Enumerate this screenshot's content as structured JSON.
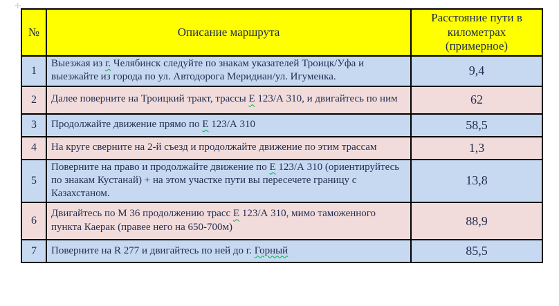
{
  "colors": {
    "page_bg": "#FFFFFF",
    "header_bg": "#FFFF00",
    "row_blue": "#C6D9F1",
    "row_pink": "#F2DCDB",
    "border": "#000000",
    "text": "#1F2C50",
    "spellcheck_underline": "#00B050",
    "move_handle": "#C9C9C9"
  },
  "icons": {
    "table_move_handle": "✛"
  },
  "table": {
    "header": {
      "col_number": "№",
      "col_description": "Описание маршрута",
      "col_distance": "Расстояние пути в километрах (примерное)"
    },
    "rows": [
      {
        "number": "1",
        "distance_km": "9,4",
        "description": [
          {
            "text": "Выезжая из "
          },
          {
            "text": "г.",
            "misspelled": true
          },
          {
            "text": " Челябинск следуйте по знакам указателей Троицк/Уфа и выезжайте из города по ул. Автодорога Меридиан/ул. Игуменка."
          }
        ]
      },
      {
        "number": "2",
        "distance_km": "62",
        "description": [
          {
            "text": "Далее поверните на Троицкий тракт, трассы "
          },
          {
            "text": "Е",
            "misspelled": true
          },
          {
            "text": " 123/А 310, и двигайтесь по ним"
          }
        ]
      },
      {
        "number": "3",
        "distance_km": "58,5",
        "description": [
          {
            "text": "Продолжайте движение прямо по "
          },
          {
            "text": "Е",
            "misspelled": true
          },
          {
            "text": " 123/А 310"
          }
        ]
      },
      {
        "number": "4",
        "distance_km": "1,3",
        "description": [
          {
            "text": "На круге сверните на 2-й съезд и продолжайте движение по этим трассам"
          }
        ]
      },
      {
        "number": "5",
        "distance_km": "13,8",
        "description": [
          {
            "text": "Поверните на право и продолжайте движение по "
          },
          {
            "text": "Е",
            "misspelled": true
          },
          {
            "text": " 123/А 310 (ориентируйтесь по знакам Кустанай) + на этом участке пути вы пересечете границу с Казахстаном."
          }
        ]
      },
      {
        "number": "6",
        "distance_km": "88,9",
        "description": [
          {
            "text": "Двигайтесь по  М 36 продолжению  трасс "
          },
          {
            "text": "Е",
            "misspelled": true
          },
          {
            "text": " 123/А 310, мимо таможенного пункта Каерак (правее него на 650-700м)"
          }
        ]
      },
      {
        "number": "7",
        "distance_km": "85,5",
        "description": [
          {
            "text": "Поверните на R 277  и двигайтесь по ней до г. "
          },
          {
            "text": "Горный",
            "misspelled": true
          }
        ]
      }
    ]
  }
}
